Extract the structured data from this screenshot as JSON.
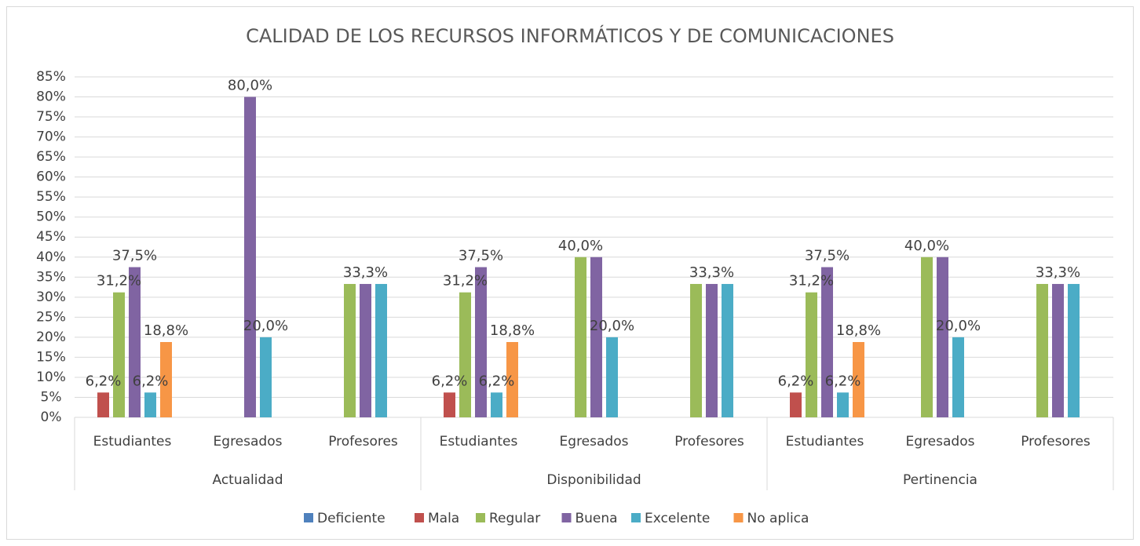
{
  "chart_data": {
    "type": "bar",
    "title": "CALIDAD DE LOS RECURSOS INFORMÁTICOS Y DE COMUNICACIONES",
    "categories": [
      "Estudiantes",
      "Egresados",
      "Profesores",
      "Estudiantes",
      "Egresados",
      "Profesores",
      "Estudiantes",
      "Egresados",
      "Profesores"
    ],
    "category_groups": [
      "Actualidad",
      "Disponibilidad",
      "Pertinencia"
    ],
    "series": [
      {
        "name": "Deficiente",
        "color": "#4f81bd",
        "values": [
          null,
          null,
          null,
          null,
          null,
          null,
          null,
          null,
          null
        ]
      },
      {
        "name": "Mala",
        "color": "#c0504d",
        "values": [
          6.2,
          null,
          null,
          6.2,
          null,
          null,
          6.2,
          null,
          null
        ],
        "value_labels": [
          "6,2%",
          null,
          null,
          "6,2%",
          null,
          null,
          "6,2%",
          null,
          null
        ]
      },
      {
        "name": "Regular",
        "color": "#9bbb59",
        "values": [
          31.2,
          null,
          33.3,
          31.2,
          40,
          33.3,
          31.2,
          40,
          33.3
        ],
        "value_labels": [
          "31,2%",
          null,
          null,
          "31,2%",
          "40,0%",
          null,
          "31,2%",
          "40,0%",
          null
        ]
      },
      {
        "name": "Buena",
        "color": "#8064a2",
        "values": [
          37.5,
          80,
          33.3,
          37.5,
          40,
          33.3,
          37.5,
          40,
          33.3
        ],
        "value_labels": [
          "37,5%",
          "80,0%",
          "33,3%",
          "37,5%",
          null,
          "33,3%",
          "37,5%",
          null,
          "33,3%"
        ]
      },
      {
        "name": "Excelente",
        "color": "#4bacc6",
        "values": [
          6.2,
          20,
          33.3,
          6.2,
          20,
          33.3,
          6.2,
          20,
          33.3
        ],
        "value_labels": [
          "6,2%",
          "20,0%",
          null,
          "6,2%",
          "20,0%",
          null,
          "6,2%",
          "20,0%",
          null
        ]
      },
      {
        "name": "No aplica",
        "color": "#f79646",
        "values": [
          18.8,
          null,
          null,
          18.8,
          null,
          null,
          18.8,
          null,
          null
        ],
        "value_labels": [
          "18,8%",
          null,
          null,
          "18,8%",
          null,
          null,
          "18,8%",
          null,
          null
        ]
      }
    ],
    "ylim": [
      0,
      85
    ],
    "yticks": [
      {
        "value": 0,
        "label": "0%"
      },
      {
        "value": 5,
        "label": "5%"
      },
      {
        "value": 10,
        "label": "10%"
      },
      {
        "value": 15,
        "label": "15%"
      },
      {
        "value": 20,
        "label": "20%"
      },
      {
        "value": 25,
        "label": "25%"
      },
      {
        "value": 30,
        "label": "30%"
      },
      {
        "value": 35,
        "label": "35%"
      },
      {
        "value": 40,
        "label": "40%"
      },
      {
        "value": 45,
        "label": "45%"
      },
      {
        "value": 50,
        "label": "50%"
      },
      {
        "value": 55,
        "label": "55%"
      },
      {
        "value": 60,
        "label": "60%"
      },
      {
        "value": 65,
        "label": "65%"
      },
      {
        "value": 70,
        "label": "70%"
      },
      {
        "value": 75,
        "label": "75%"
      },
      {
        "value": 80,
        "label": "80%"
      },
      {
        "value": 85,
        "label": "85%"
      }
    ],
    "grid": true,
    "legend": "bottom"
  }
}
